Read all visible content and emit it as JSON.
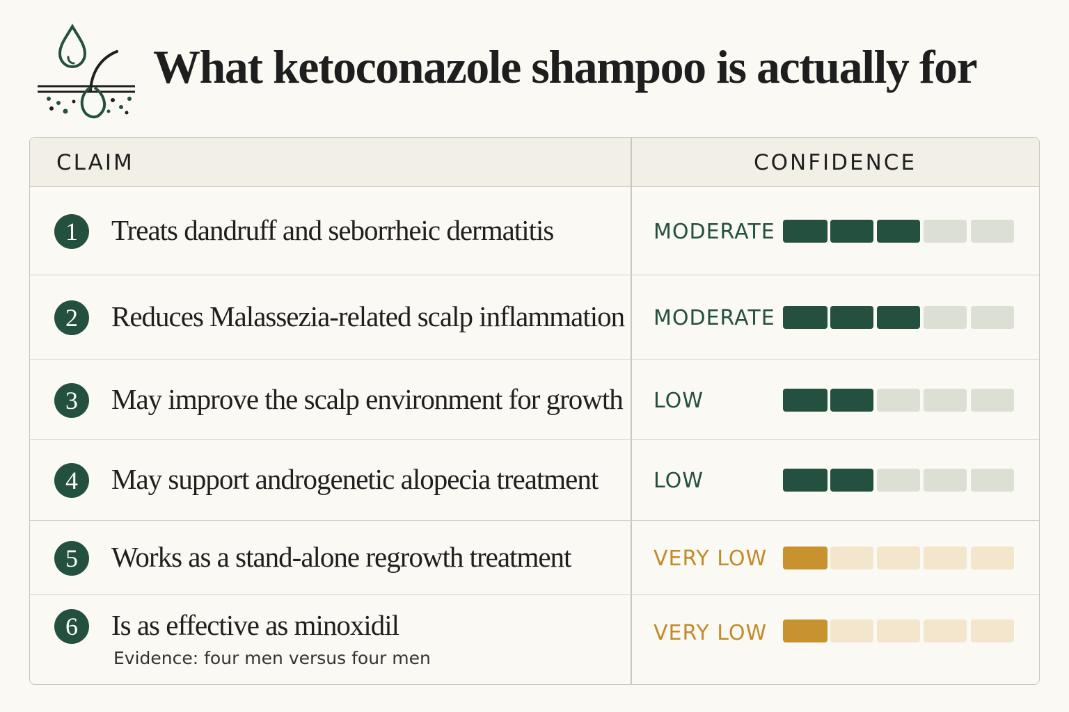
{
  "title": "What ketoconazole shampoo is actually for",
  "colors": {
    "moderate_low_fill": "#23503f",
    "moderate_low_empty": "#dcdfd4",
    "very_low_fill": "#c8922f",
    "very_low_empty": "#f3e6cd",
    "moderate_low_text": "#23503f",
    "very_low_text": "#c28a2a"
  },
  "chart_data": {
    "type": "table",
    "columns": [
      "CLAIM",
      "CONFIDENCE"
    ],
    "scale_max": 5,
    "rows": [
      {
        "number": "1",
        "claim": "Treats dandruff and seborrheic dermatitis",
        "note": "",
        "level": "MODERATE",
        "score": 3
      },
      {
        "number": "2",
        "claim": "Reduces Malassezia-related scalp inflammation",
        "note": "",
        "level": "MODERATE",
        "score": 3
      },
      {
        "number": "3",
        "claim": "May improve the scalp environment for growth",
        "note": "",
        "level": "LOW",
        "score": 2
      },
      {
        "number": "4",
        "claim": "May support androgenetic alopecia treatment",
        "note": "",
        "level": "LOW",
        "score": 2
      },
      {
        "number": "5",
        "claim": "Works as a stand-alone regrowth treatment",
        "note": "",
        "level": "VERY LOW",
        "score": 1
      },
      {
        "number": "6",
        "claim": "Is as effective as minoxidil",
        "note": "Evidence: four men versus four men",
        "level": "VERY LOW",
        "score": 1
      }
    ]
  }
}
